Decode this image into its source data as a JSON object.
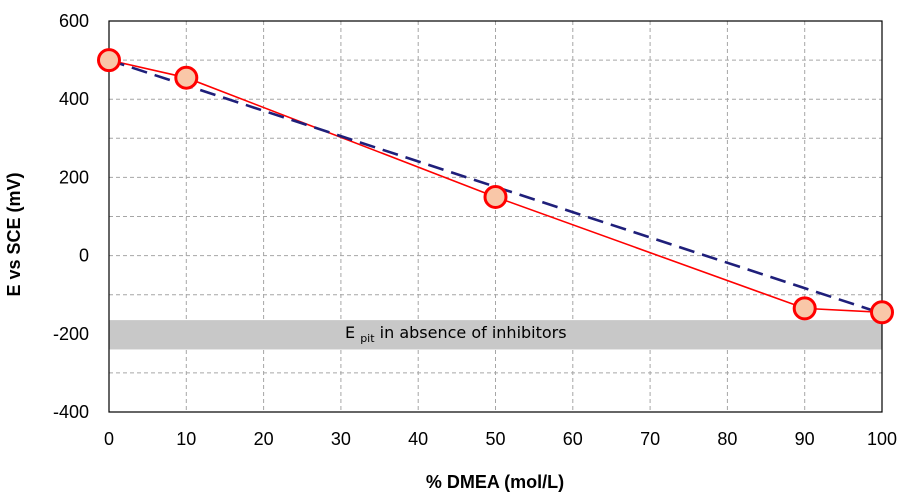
{
  "chart_data": {
    "type": "line",
    "title": "",
    "xlabel": "% DMEA (mol/L)",
    "ylabel": "E vs SCE (mV)",
    "xlim": [
      0,
      100
    ],
    "ylim": [
      -400,
      600
    ],
    "x_ticks": [
      0,
      10,
      20,
      30,
      40,
      50,
      60,
      70,
      80,
      90,
      100
    ],
    "y_ticks": [
      -400,
      -200,
      0,
      200,
      400,
      600
    ],
    "grid": true,
    "legend": "none",
    "series": [
      {
        "type": "line-markers",
        "x": [
          0,
          10,
          50,
          90,
          100
        ],
        "y": [
          500,
          455,
          150,
          -135,
          -145
        ],
        "line_color": "#ff0000",
        "marker_fill": "#f9c7a8",
        "marker_edge": "#ff0000"
      },
      {
        "type": "dashed-fit",
        "x": [
          0,
          100
        ],
        "y": [
          500,
          -148
        ],
        "line_color": "#1f1f7a"
      }
    ],
    "band": {
      "y_range": [
        -240,
        -165
      ],
      "color": "#c8c8c8",
      "label_main": "E",
      "label_sub": "pit",
      "label_rest": " in absence of inhibitors"
    }
  }
}
